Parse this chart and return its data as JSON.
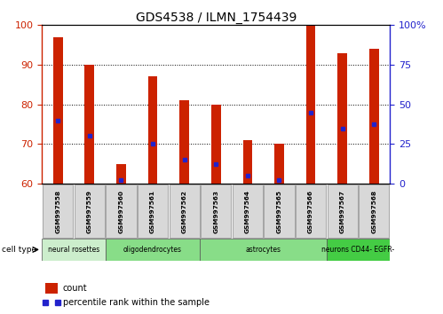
{
  "title": "GDS4538 / ILMN_1754439",
  "samples": [
    "GSM997558",
    "GSM997559",
    "GSM997560",
    "GSM997561",
    "GSM997562",
    "GSM997563",
    "GSM997564",
    "GSM997565",
    "GSM997566",
    "GSM997567",
    "GSM997568"
  ],
  "count_values": [
    97,
    90,
    65,
    87,
    81,
    80,
    71,
    70,
    100,
    93,
    94
  ],
  "percentile_values": [
    76,
    72,
    61,
    70,
    66,
    65,
    62,
    61,
    78,
    74,
    75
  ],
  "y_min": 60,
  "y_max": 100,
  "y_ticks": [
    60,
    70,
    80,
    90,
    100
  ],
  "right_y_ticks": [
    0,
    25,
    50,
    75,
    100
  ],
  "right_y_tick_labels": [
    "0",
    "25",
    "50",
    "75",
    "100%"
  ],
  "bar_color": "#CC2200",
  "dot_color": "#2222CC",
  "bar_width": 0.3,
  "cell_groups": [
    {
      "label": "neural rosettes",
      "start": 0,
      "end": 2,
      "color": "#cceecc"
    },
    {
      "label": "oligodendrocytes",
      "start": 2,
      "end": 5,
      "color": "#88dd88"
    },
    {
      "label": "astrocytes",
      "start": 5,
      "end": 9,
      "color": "#88dd88"
    },
    {
      "label": "neurons CD44- EGFR-",
      "start": 9,
      "end": 11,
      "color": "#44cc44"
    }
  ],
  "legend_count_label": "count",
  "legend_percentile_label": "percentile rank within the sample",
  "cell_type_label": "cell type",
  "tick_label_color_left": "#CC2200",
  "tick_label_color_right": "#2222CC",
  "sample_box_color": "#d8d8d8",
  "grid_yticks": [
    70,
    80,
    90
  ]
}
